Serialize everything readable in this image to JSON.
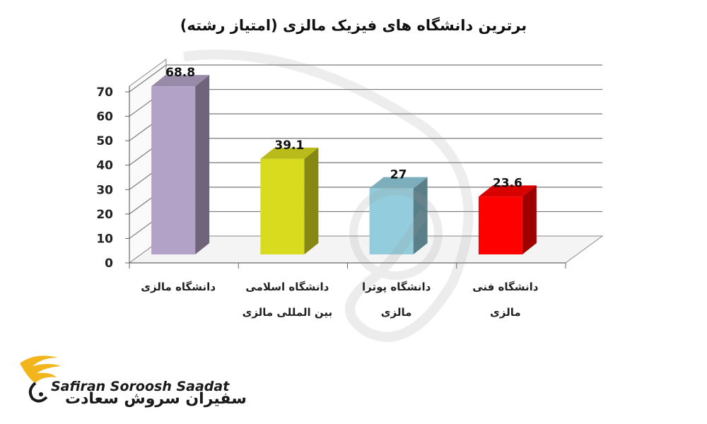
{
  "chart_data": {
    "type": "bar",
    "title": "برترین دانشگاه های فیزیک مالزی (امتیاز رشته)",
    "categories": [
      [
        "دانشگاه مالزی"
      ],
      [
        "دانشگاه اسلامی",
        "بین المللی مالزی"
      ],
      [
        "دانشگاه پوترا",
        "مالزی"
      ],
      [
        "دانشگاه فنی",
        "مالزی"
      ]
    ],
    "values": [
      68.8,
      39.1,
      27,
      23.6
    ],
    "data_labels": [
      "68.8",
      "39.1",
      "27",
      "23.6"
    ],
    "colors": [
      "#b3a2c7",
      "#d9dc1e",
      "#93cddd",
      "#ff0000"
    ],
    "ylim": [
      0,
      70
    ],
    "yticks": [
      "0",
      "10",
      "20",
      "30",
      "40",
      "50",
      "60",
      "70"
    ],
    "grid": true,
    "legend": "none",
    "three_d": true
  },
  "watermark": {
    "brand_en": "Safiran Soroosh Saadat",
    "brand_fa": "سفیران سروش سعادت"
  },
  "logo": {
    "text_en": "Safiran Soroosh Saadat",
    "text_fa": "سفیران سروش سعادت",
    "colors": {
      "wing": "#f2b51c",
      "text": "#1a1a1a"
    }
  }
}
